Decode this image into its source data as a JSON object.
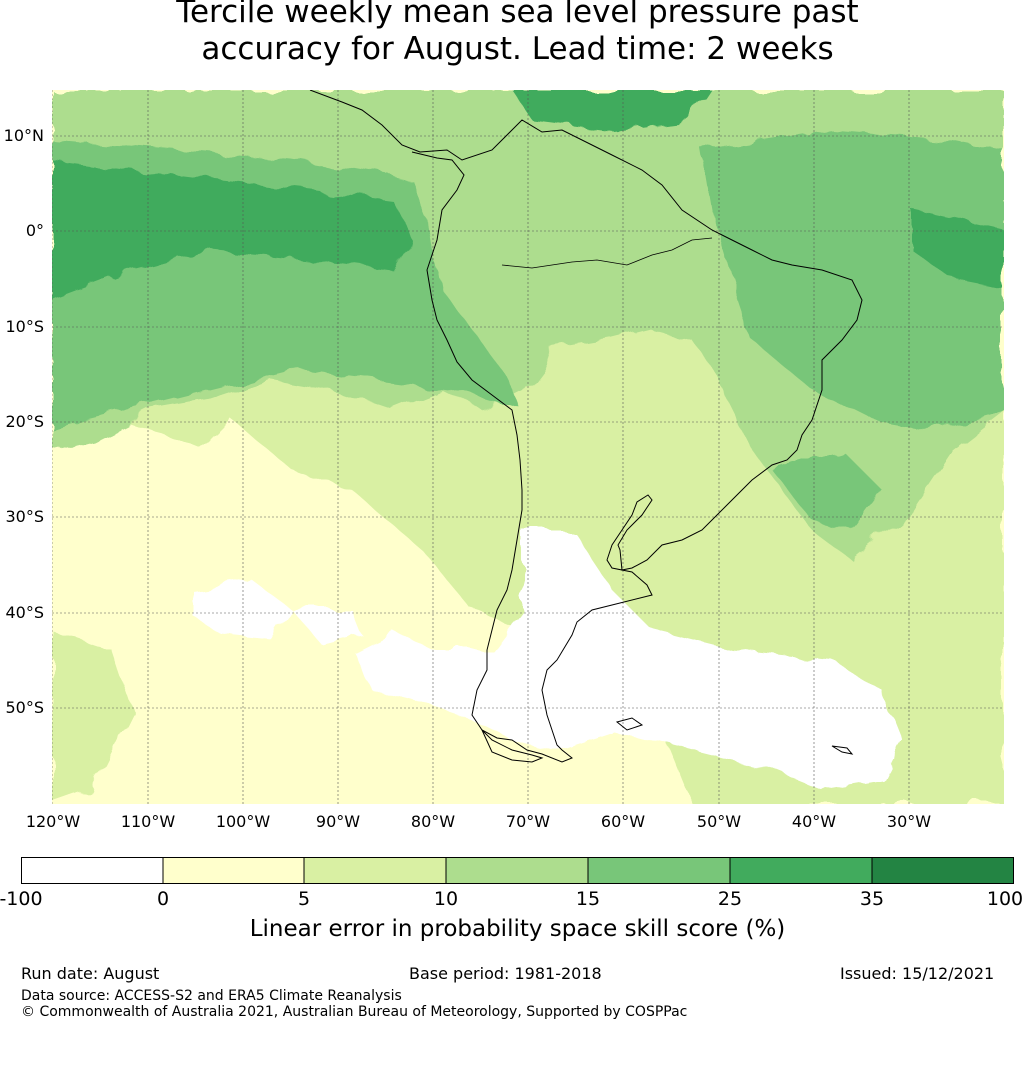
{
  "title_line1": "Tercile weekly mean sea level pressure past",
  "title_line2": "accuracy for August. Lead time: 2 weeks",
  "map": {
    "lat_labels": [
      "10°N",
      "0°",
      "10°S",
      "20°S",
      "30°S",
      "40°S",
      "50°S"
    ],
    "lon_labels": [
      "120°W",
      "110°W",
      "100°W",
      "90°W",
      "80°W",
      "70°W",
      "60°W",
      "50°W",
      "40°W",
      "30°W"
    ],
    "region": "South America and surrounding oceans"
  },
  "colorbar": {
    "ticks": [
      "-100",
      "0",
      "5",
      "10",
      "15",
      "25",
      "35",
      "100"
    ],
    "colors": [
      "#ffffff",
      "#ffffcc",
      "#d9f0a3",
      "#addd8e",
      "#78c679",
      "#41ab5d",
      "#238443"
    ],
    "label": "Linear error in probability space skill score (%)"
  },
  "footer": {
    "run_date": "Run date: August",
    "base_period": "Base period: 1981-2018",
    "issued": "Issued: 15/12/2021",
    "data_source": "Data source: ACCESS-S2 and ERA5 Climate Reanalysis",
    "copyright": "© Commonwealth of Australia 2021, Australian Bureau of Meteorology, Supported by COSPPac"
  }
}
